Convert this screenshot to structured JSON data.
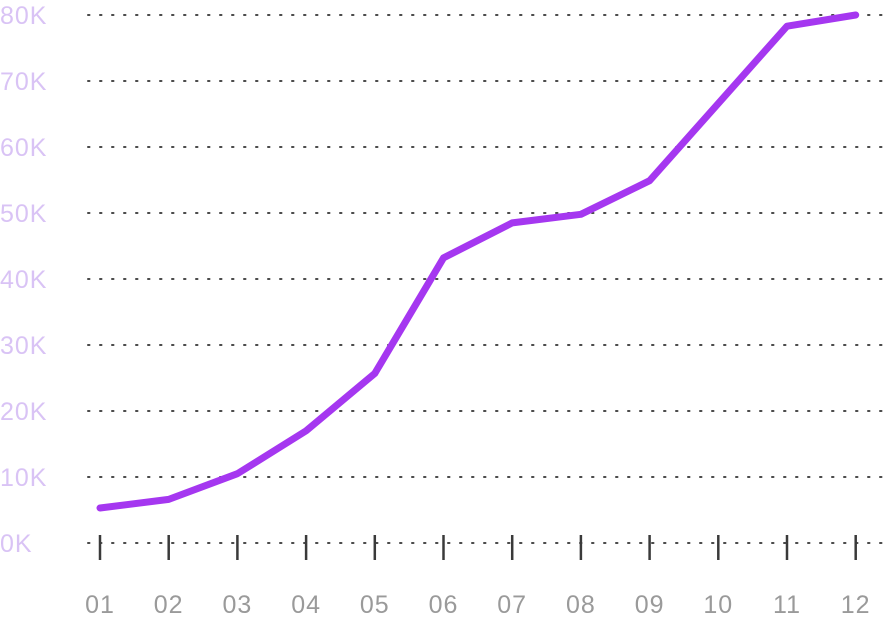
{
  "chart_data": {
    "type": "line",
    "categories": [
      "01",
      "02",
      "03",
      "04",
      "05",
      "06",
      "07",
      "08",
      "09",
      "10",
      "11",
      "12"
    ],
    "series": [
      {
        "values": [
          5300,
          6600,
          10500,
          17000,
          25700,
          43200,
          48500,
          49800,
          54900,
          66600,
          78300,
          80000
        ],
        "color": "#a537f0"
      }
    ],
    "y_ticks": [
      0,
      10000,
      20000,
      30000,
      40000,
      50000,
      60000,
      70000,
      80000
    ],
    "y_tick_labels": [
      "0K",
      "10K",
      "20K",
      "30K",
      "40K",
      "50K",
      "60K",
      "70K",
      "80K"
    ],
    "ylim": [
      0,
      80000
    ],
    "grid": "horizontal-dotted",
    "colors": {
      "line": "#a537f0",
      "y_labels": "#d9c3f5",
      "x_labels": "#9a9a9a",
      "grid": "#4a4a4a",
      "x_ticks": "#3a3a3a"
    }
  }
}
